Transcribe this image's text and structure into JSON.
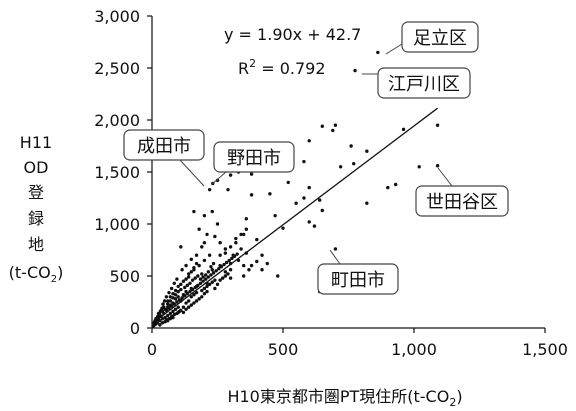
{
  "chart_data": {
    "type": "scatter",
    "xlabel": "H10東京都市圏PT現住所(t-CO2)",
    "xlabel_main": "H10東京都市圏PT現住所(t-CO",
    "xlabel_sub": "2",
    "xlabel_close": ")",
    "ylabel_lines": [
      "H11",
      "OD",
      "登",
      "録",
      "地"
    ],
    "ylabel_unit_main": "(t-CO",
    "ylabel_unit_sub": "2",
    "ylabel_unit_close": ")",
    "xlim": [
      0,
      1500
    ],
    "ylim": [
      0,
      3000
    ],
    "xticks": [
      0,
      500,
      1000,
      1500
    ],
    "xtick_labels": [
      "0",
      "500",
      "1,000",
      "1,500"
    ],
    "yticks": [
      0,
      500,
      1000,
      1500,
      2000,
      2500,
      3000
    ],
    "ytick_labels": [
      "0",
      "500",
      "1,000",
      "1,500",
      "2,000",
      "2,500",
      "3,000"
    ],
    "grid": false,
    "trendline": {
      "slope": 1.9,
      "intercept": 42.7,
      "x_range": [
        0,
        1090
      ],
      "equation": "y = 1.90x + 42.7",
      "r2_prefix": "R",
      "r2_sup": "2",
      "r2_rest": " = 0.792"
    },
    "points": [
      [
        862,
        2650
      ],
      [
        775,
        2475
      ],
      [
        1090,
        1950
      ],
      [
        1090,
        1560
      ],
      [
        220,
        1330
      ],
      [
        232,
        1390
      ],
      [
        700,
        760
      ],
      [
        700,
        1950
      ],
      [
        650,
        1940
      ],
      [
        600,
        1800
      ],
      [
        960,
        1910
      ],
      [
        1020,
        1550
      ],
      [
        930,
        1380
      ],
      [
        760,
        1750
      ],
      [
        770,
        1580
      ],
      [
        900,
        1350
      ],
      [
        600,
        1350
      ],
      [
        580,
        1250
      ],
      [
        640,
        1230
      ],
      [
        650,
        1130
      ],
      [
        620,
        980
      ],
      [
        600,
        1020
      ],
      [
        500,
        960
      ],
      [
        470,
        1080
      ],
      [
        450,
        1290
      ],
      [
        380,
        1480
      ],
      [
        450,
        1530
      ],
      [
        330,
        1500
      ],
      [
        300,
        1470
      ],
      [
        380,
        1280
      ],
      [
        480,
        500
      ],
      [
        640,
        350
      ],
      [
        400,
        850
      ],
      [
        250,
        1000
      ],
      [
        110,
        780
      ],
      [
        230,
        1120
      ],
      [
        820,
        1700
      ],
      [
        720,
        1550
      ],
      [
        550,
        1200
      ],
      [
        690,
        1900
      ],
      [
        350,
        900
      ],
      [
        820,
        1200
      ],
      [
        420,
        700
      ],
      [
        360,
        1050
      ],
      [
        520,
        1400
      ],
      [
        580,
        1600
      ],
      [
        290,
        1330
      ],
      [
        250,
        1420
      ],
      [
        200,
        1080
      ],
      [
        160,
        1120
      ],
      [
        180,
        950
      ],
      [
        210,
        900
      ],
      [
        240,
        880
      ],
      [
        260,
        820
      ],
      [
        280,
        760
      ],
      [
        310,
        700
      ],
      [
        330,
        650
      ],
      [
        350,
        600
      ],
      [
        370,
        560
      ],
      [
        300,
        620
      ],
      [
        320,
        820
      ],
      [
        340,
        760
      ],
      [
        220,
        700
      ],
      [
        200,
        650
      ],
      [
        180,
        600
      ],
      [
        160,
        560
      ],
      [
        140,
        520
      ],
      [
        190,
        520
      ],
      [
        230,
        560
      ],
      [
        260,
        600
      ],
      [
        280,
        540
      ],
      [
        300,
        480
      ],
      [
        240,
        460
      ],
      [
        210,
        430
      ],
      [
        170,
        400
      ],
      [
        150,
        380
      ],
      [
        130,
        350
      ],
      [
        120,
        320
      ],
      [
        100,
        300
      ],
      [
        90,
        280
      ],
      [
        110,
        260
      ],
      [
        80,
        240
      ],
      [
        70,
        220
      ],
      [
        60,
        200
      ],
      [
        50,
        180
      ],
      [
        40,
        160
      ],
      [
        30,
        130
      ],
      [
        20,
        100
      ],
      [
        10,
        60
      ],
      [
        25,
        80
      ],
      [
        35,
        110
      ],
      [
        45,
        140
      ],
      [
        55,
        170
      ],
      [
        65,
        190
      ],
      [
        75,
        210
      ],
      [
        85,
        230
      ],
      [
        95,
        250
      ],
      [
        105,
        270
      ],
      [
        115,
        290
      ],
      [
        125,
        310
      ],
      [
        135,
        330
      ],
      [
        145,
        350
      ],
      [
        155,
        370
      ],
      [
        165,
        390
      ],
      [
        175,
        410
      ],
      [
        185,
        430
      ],
      [
        195,
        450
      ],
      [
        205,
        470
      ],
      [
        215,
        490
      ],
      [
        225,
        510
      ],
      [
        235,
        530
      ],
      [
        245,
        550
      ],
      [
        255,
        570
      ],
      [
        265,
        590
      ],
      [
        275,
        610
      ],
      [
        285,
        630
      ],
      [
        295,
        650
      ],
      [
        305,
        670
      ],
      [
        315,
        690
      ],
      [
        325,
        710
      ],
      [
        120,
        200
      ],
      [
        130,
        240
      ],
      [
        140,
        260
      ],
      [
        150,
        300
      ],
      [
        160,
        320
      ],
      [
        170,
        340
      ],
      [
        90,
        180
      ],
      [
        100,
        200
      ],
      [
        80,
        160
      ],
      [
        70,
        140
      ],
      [
        60,
        120
      ],
      [
        50,
        100
      ],
      [
        40,
        90
      ],
      [
        30,
        70
      ],
      [
        20,
        50
      ],
      [
        15,
        40
      ],
      [
        10,
        30
      ],
      [
        5,
        20
      ],
      [
        60,
        260
      ],
      [
        70,
        300
      ],
      [
        80,
        330
      ],
      [
        90,
        360
      ],
      [
        100,
        400
      ],
      [
        110,
        420
      ],
      [
        120,
        450
      ],
      [
        130,
        470
      ],
      [
        140,
        490
      ],
      [
        150,
        540
      ],
      [
        160,
        580
      ],
      [
        170,
        620
      ],
      [
        100,
        150
      ],
      [
        110,
        170
      ],
      [
        120,
        150
      ],
      [
        130,
        180
      ],
      [
        140,
        200
      ],
      [
        150,
        220
      ],
      [
        160,
        240
      ],
      [
        170,
        260
      ],
      [
        180,
        280
      ],
      [
        190,
        300
      ],
      [
        200,
        330
      ],
      [
        210,
        350
      ],
      [
        55,
        80
      ],
      [
        65,
        90
      ],
      [
        75,
        110
      ],
      [
        85,
        130
      ],
      [
        95,
        140
      ],
      [
        105,
        160
      ],
      [
        30,
        30
      ],
      [
        40,
        50
      ],
      [
        50,
        60
      ],
      [
        60,
        70
      ],
      [
        70,
        90
      ],
      [
        80,
        100
      ],
      [
        190,
        360
      ],
      [
        200,
        380
      ],
      [
        210,
        400
      ],
      [
        220,
        420
      ],
      [
        230,
        440
      ],
      [
        240,
        380
      ],
      [
        250,
        420
      ],
      [
        260,
        460
      ],
      [
        270,
        480
      ],
      [
        280,
        500
      ],
      [
        290,
        520
      ],
      [
        300,
        560
      ],
      [
        350,
        500
      ],
      [
        380,
        600
      ],
      [
        400,
        640
      ],
      [
        420,
        560
      ],
      [
        440,
        620
      ],
      [
        360,
        720
      ],
      [
        125,
        390
      ],
      [
        135,
        410
      ],
      [
        145,
        430
      ],
      [
        155,
        460
      ],
      [
        165,
        480
      ],
      [
        175,
        500
      ],
      [
        185,
        470
      ],
      [
        195,
        490
      ],
      [
        205,
        510
      ],
      [
        215,
        540
      ],
      [
        225,
        590
      ],
      [
        235,
        620
      ],
      [
        100,
        350
      ],
      [
        110,
        370
      ],
      [
        90,
        320
      ],
      [
        80,
        290
      ],
      [
        70,
        260
      ],
      [
        60,
        230
      ],
      [
        45,
        200
      ],
      [
        35,
        170
      ],
      [
        25,
        140
      ],
      [
        15,
        90
      ],
      [
        12,
        70
      ],
      [
        8,
        50
      ],
      [
        260,
        700
      ],
      [
        280,
        720
      ],
      [
        300,
        780
      ],
      [
        320,
        860
      ],
      [
        340,
        900
      ],
      [
        360,
        950
      ],
      [
        190,
        780
      ],
      [
        200,
        820
      ],
      [
        170,
        700
      ],
      [
        150,
        660
      ],
      [
        130,
        600
      ],
      [
        115,
        560
      ],
      [
        95,
        470
      ],
      [
        85,
        430
      ],
      [
        75,
        380
      ],
      [
        65,
        340
      ],
      [
        55,
        300
      ],
      [
        48,
        260
      ],
      [
        42,
        230
      ],
      [
        38,
        190
      ],
      [
        32,
        160
      ],
      [
        28,
        120
      ],
      [
        22,
        110
      ],
      [
        18,
        80
      ]
    ],
    "callouts": [
      {
        "label": "足立区"
      },
      {
        "label": "江戸川区"
      },
      {
        "label": "成田市"
      },
      {
        "label": "野田市"
      },
      {
        "label": "世田谷区"
      },
      {
        "label": "町田市"
      }
    ]
  }
}
